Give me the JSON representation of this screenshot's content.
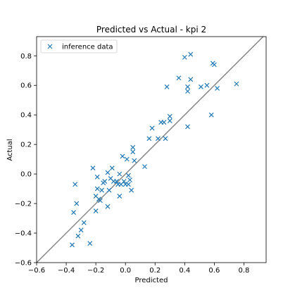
{
  "chart_data": {
    "type": "scatter",
    "title": "Predicted vs Actual - kpi 2",
    "xlabel": "Predicted",
    "ylabel": "Actual",
    "xlim": [
      -0.6,
      0.95
    ],
    "ylim": [
      -0.6,
      0.93
    ],
    "xticks": [
      -0.6,
      -0.4,
      -0.2,
      0.0,
      0.2,
      0.4,
      0.6,
      0.8
    ],
    "xtick_labels": [
      "−0.6",
      "−0.4",
      "−0.2",
      "0.0",
      "0.2",
      "0.4",
      "0.6",
      "0.8"
    ],
    "yticks": [
      -0.6,
      -0.4,
      -0.2,
      0.0,
      0.2,
      0.4,
      0.6,
      0.8
    ],
    "ytick_labels": [
      "−0.6",
      "−0.4",
      "−0.2",
      "0.0",
      "0.2",
      "0.4",
      "0.6",
      "0.8"
    ],
    "grid": false,
    "legend_position": "top-left",
    "reference_line": {
      "x": [
        -0.6,
        0.95
      ],
      "y": [
        -0.6,
        0.95
      ],
      "color": "#808080"
    },
    "series": [
      {
        "name": "inference data",
        "marker": "x",
        "color": "#1f77b4",
        "x": [
          -0.36,
          -0.35,
          -0.34,
          -0.33,
          -0.32,
          -0.3,
          -0.28,
          -0.24,
          -0.22,
          -0.2,
          -0.2,
          -0.19,
          -0.19,
          -0.18,
          -0.17,
          -0.16,
          -0.15,
          -0.14,
          -0.12,
          -0.12,
          -0.11,
          -0.1,
          -0.09,
          -0.08,
          -0.06,
          -0.05,
          -0.04,
          -0.04,
          -0.03,
          -0.02,
          -0.01,
          0.0,
          0.01,
          0.02,
          0.02,
          0.03,
          0.04,
          0.05,
          0.05,
          0.06,
          0.13,
          0.16,
          0.18,
          0.22,
          0.24,
          0.26,
          0.27,
          0.28,
          0.3,
          0.3,
          0.36,
          0.4,
          0.42,
          0.42,
          0.42,
          0.44,
          0.44,
          0.51,
          0.55,
          0.58,
          0.59,
          0.6,
          0.62,
          0.75
        ],
        "y": [
          -0.48,
          -0.26,
          -0.07,
          -0.2,
          -0.42,
          -0.38,
          -0.33,
          -0.47,
          0.04,
          -0.15,
          -0.25,
          -0.1,
          -0.02,
          -0.17,
          -0.18,
          -0.11,
          -0.06,
          -0.05,
          -0.22,
          0.01,
          -0.11,
          -0.03,
          0.04,
          -0.05,
          -0.05,
          -0.07,
          -0.15,
          0.0,
          -0.07,
          0.12,
          -0.05,
          -0.07,
          0.1,
          -0.07,
          -0.01,
          -0.04,
          -0.11,
          0.15,
          0.18,
          0.09,
          0.05,
          0.24,
          0.31,
          0.24,
          0.35,
          0.35,
          0.24,
          0.59,
          0.39,
          0.36,
          0.65,
          0.79,
          0.59,
          0.56,
          0.32,
          0.81,
          0.64,
          0.59,
          0.6,
          0.4,
          0.75,
          0.74,
          0.58,
          0.61
        ]
      }
    ]
  }
}
